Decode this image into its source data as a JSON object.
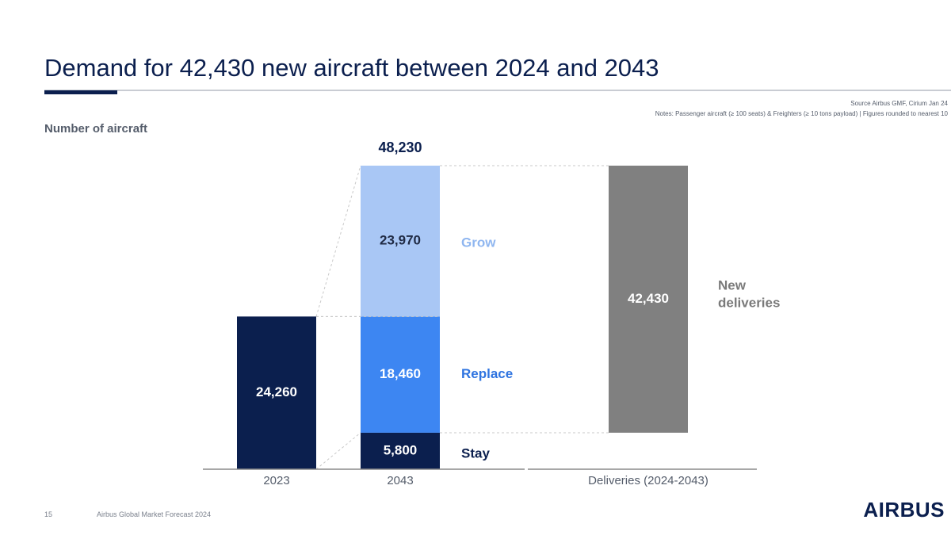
{
  "header": {
    "title": "Demand for 42,430 new aircraft between 2024 and 2043",
    "source": "Source Airbus GMF, Cirium Jan 24",
    "notes": "Notes: Passenger aircraft (≥ 100 seats) & Freighters (≥ 10 tons payload) | Figures rounded to nearest 10"
  },
  "footer": {
    "page_number": "15",
    "label": "Airbus Global Market Forecast 2024",
    "brand": "AIRBUS"
  },
  "colors": {
    "fleet_2023": "#0b1f4e",
    "stay": "#0b1f4e",
    "replace": "#3d86f2",
    "grow": "#a9c7f5",
    "deliveries": "#808080",
    "grow_label": "#8fb6f0",
    "replace_label": "#2f74e0",
    "stay_label": "#0b1f4e",
    "new_deliveries_label": "#7a7a7a"
  },
  "chart_data": {
    "type": "bar",
    "ylabel": "Number of aircraft",
    "categories": [
      "2023",
      "2043",
      "Deliveries (2024-2043)"
    ],
    "fleet_2023": {
      "value": 24260,
      "label": "24,260"
    },
    "fleet_2043": {
      "total": 48230,
      "total_label": "48,230",
      "segments": [
        {
          "name": "Stay",
          "value": 5800,
          "label": "5,800"
        },
        {
          "name": "Replace",
          "value": 18460,
          "label": "18,460"
        },
        {
          "name": "Grow",
          "value": 23970,
          "label": "23,970"
        }
      ]
    },
    "deliveries": {
      "value": 42430,
      "label": "42,430",
      "name": "New deliveries"
    }
  }
}
